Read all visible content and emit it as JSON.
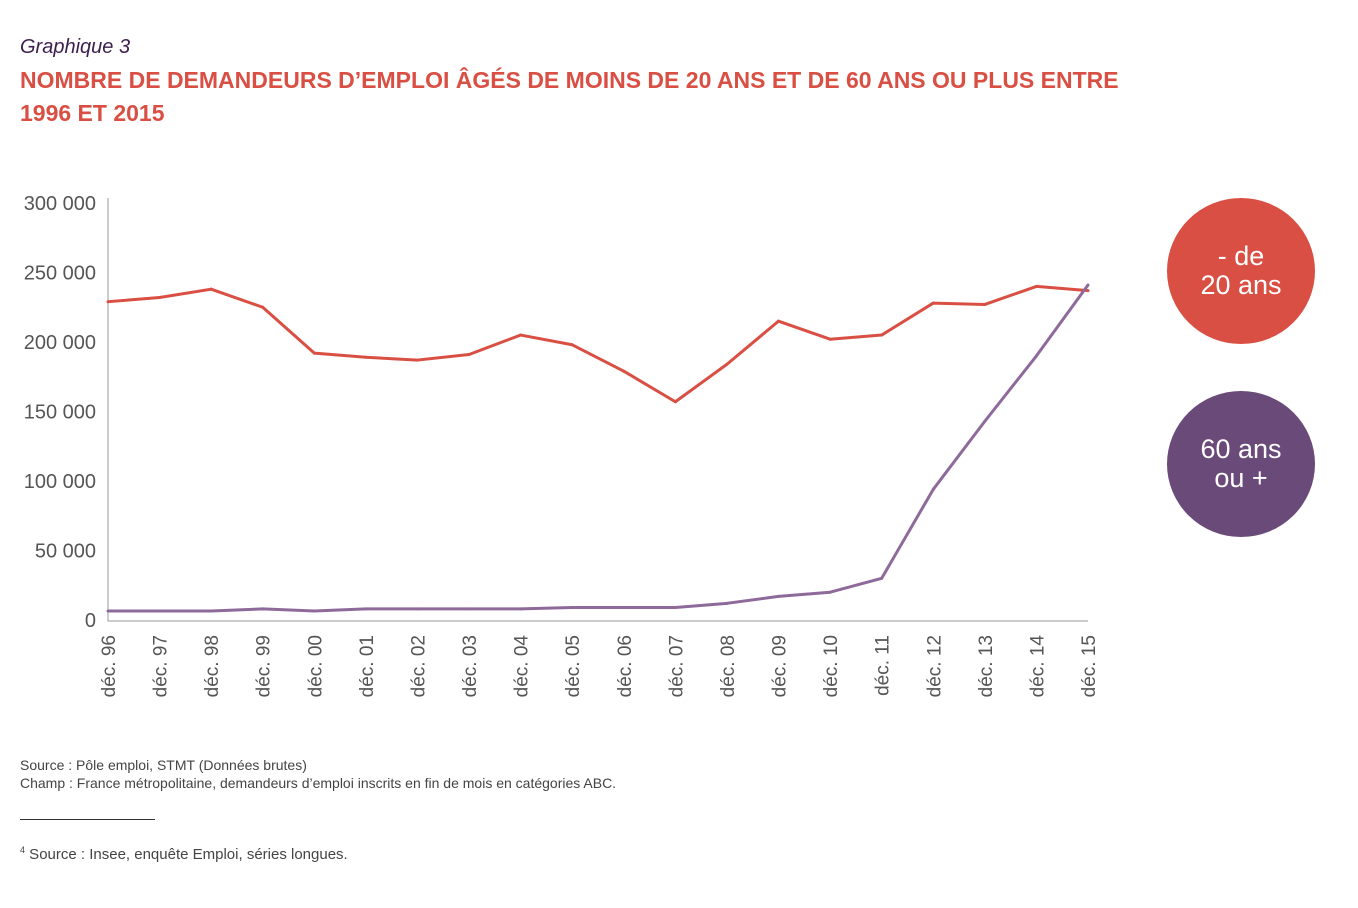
{
  "header": {
    "kicker": "Graphique 3",
    "title": "NOMBRE DE DEMANDEURS D’EMPLOI ÂGÉS DE MOINS DE 20 ANS ET DE 60 ANS OU PLUS ENTRE 1996 ET 2015"
  },
  "chart_data": {
    "type": "line",
    "title": "NOMBRE DE DEMANDEURS D’EMPLOI ÂGÉS DE MOINS DE 20 ANS ET DE 60 ANS OU PLUS ENTRE 1996 ET 2015",
    "categories": [
      "déc. 96",
      "déc. 97",
      "déc. 98",
      "déc. 99",
      "déc. 00",
      "déc. 01",
      "déc. 02",
      "déc. 03",
      "déc. 04",
      "déc. 05",
      "déc. 06",
      "déc. 07",
      "déc. 08",
      "déc. 09",
      "déc. 10",
      "déc. 11",
      "déc. 12",
      "déc. 13",
      "déc. 14",
      "déc. 15"
    ],
    "yticks": [
      "0",
      "50 000",
      "100 000",
      "150 000",
      "200 000",
      "250 000",
      "300 000"
    ],
    "ylim": [
      0,
      300000
    ],
    "grid": false,
    "legend_placement": "right",
    "series": [
      {
        "name": "- de 20 ans",
        "color": "#d94f43",
        "values": [
          229000,
          232000,
          238000,
          225000,
          192000,
          189000,
          187000,
          191000,
          205000,
          198000,
          179000,
          157000,
          184000,
          215000,
          202000,
          205000,
          228000,
          227000,
          240000,
          237000
        ]
      },
      {
        "name": "60 ans ou +",
        "color": "#8e6a9a",
        "values": [
          6500,
          6500,
          6500,
          8000,
          6500,
          8000,
          8000,
          8000,
          8000,
          9000,
          9000,
          9000,
          12000,
          17000,
          20000,
          30000,
          94000,
          143000,
          190000,
          241000
        ]
      }
    ]
  },
  "legend": {
    "red": {
      "line1": "- de",
      "line2": "20 ans",
      "color": "#d94f43"
    },
    "purple": {
      "line1": "60 ans",
      "line2": "ou +",
      "color": "#6a4a78"
    }
  },
  "footer": {
    "source": "Source : Pôle emploi, STMT (Données brutes)",
    "champ": "Champ : France métropolitaine, demandeurs d’emploi inscrits en fin de mois en catégories ABC.",
    "footnote_mark": "4",
    "footnote": " Source : Insee, enquête Emploi, séries longues."
  }
}
